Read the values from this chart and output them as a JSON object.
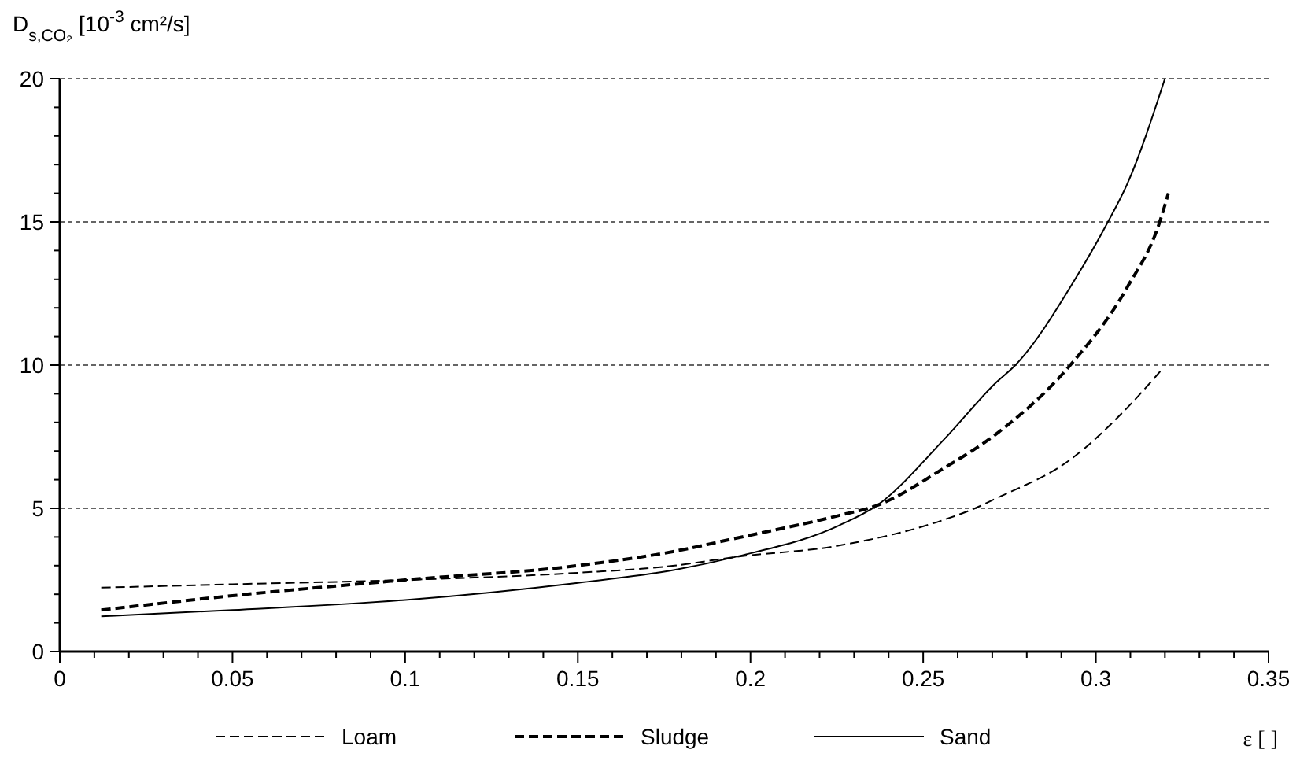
{
  "chart_data": {
    "type": "line",
    "ylabel": "D$_{s,CO₂}$ [10$^{-3}$ cm²/s]",
    "xlabel": "ε [ ]",
    "xlim": [
      0,
      0.35
    ],
    "ylim": [
      0,
      20
    ],
    "xticks": [
      0,
      {
        "value": 0.01,
        "label": null
      },
      {
        "value": 0.02,
        "label": null
      },
      {
        "value": 0.03,
        "label": null
      },
      {
        "value": 0.04,
        "label": null
      },
      0.05,
      {
        "value": 0.06,
        "label": null
      },
      {
        "value": 0.07,
        "label": null
      },
      {
        "value": 0.08,
        "label": null
      },
      {
        "value": 0.09,
        "label": null
      },
      0.1,
      {
        "value": 0.11,
        "label": null
      },
      {
        "value": 0.12,
        "label": null
      },
      {
        "value": 0.13,
        "label": null
      },
      {
        "value": 0.14,
        "label": null
      },
      0.15,
      {
        "value": 0.16,
        "label": null
      },
      {
        "value": 0.17,
        "label": null
      },
      {
        "value": 0.18,
        "label": null
      },
      {
        "value": 0.19,
        "label": null
      },
      0.2,
      {
        "value": 0.21,
        "label": null
      },
      {
        "value": 0.22,
        "label": null
      },
      {
        "value": 0.23,
        "label": null
      },
      {
        "value": 0.24,
        "label": null
      },
      0.25,
      {
        "value": 0.26,
        "label": null
      },
      {
        "value": 0.27,
        "label": null
      },
      {
        "value": 0.28,
        "label": null
      },
      {
        "value": 0.29,
        "label": null
      },
      0.3,
      {
        "value": 0.31,
        "label": null
      },
      {
        "value": 0.32,
        "label": null
      },
      {
        "value": 0.33,
        "label": null
      },
      {
        "value": 0.34,
        "label": null
      },
      0.35
    ],
    "yticks": [
      0,
      {
        "value": 1,
        "label": null
      },
      {
        "value": 2,
        "label": null
      },
      {
        "value": 3,
        "label": null
      },
      {
        "value": 4,
        "label": null
      },
      5,
      {
        "value": 6,
        "label": null
      },
      {
        "value": 7,
        "label": null
      },
      {
        "value": 8,
        "label": null
      },
      {
        "value": 9,
        "label": null
      },
      10,
      {
        "value": 11,
        "label": null
      },
      {
        "value": 12,
        "label": null
      },
      {
        "value": 13,
        "label": null
      },
      {
        "value": 14,
        "label": null
      },
      15,
      {
        "value": 16,
        "label": null
      },
      {
        "value": 17,
        "label": null
      },
      {
        "value": 18,
        "label": null
      },
      {
        "value": 19,
        "label": null
      },
      20
    ],
    "grid": "y",
    "legend": "bottom",
    "series": [
      {
        "name": "Loam",
        "color": "#000000",
        "line_style": "dashed",
        "x": [
          0.012,
          0.05,
          0.1,
          0.15,
          0.178,
          0.1955,
          0.2256,
          0.256,
          0.265,
          0.2712,
          0.2926,
          0.309,
          0.3195
        ],
        "values": [
          2.23,
          2.35,
          2.5,
          2.75,
          3.0,
          3.3,
          3.7,
          4.6,
          5.0,
          5.35,
          6.7,
          8.5,
          9.9
        ]
      },
      {
        "name": "Sludge",
        "color": "#000000",
        "line_style": "dashed",
        "x": [
          0.012,
          0.05,
          0.1,
          0.15,
          0.178,
          0.1955,
          0.2256,
          0.2366,
          0.256,
          0.2712,
          0.2926,
          0.309,
          0.3185,
          0.321
        ],
        "values": [
          1.45,
          1.95,
          2.5,
          3.0,
          3.5,
          3.95,
          4.75,
          5.1,
          6.4,
          7.6,
          10.0,
          12.7,
          15.0,
          16.0
        ]
      },
      {
        "name": "Sand",
        "color": "#000000",
        "line_style": "solid",
        "x": [
          0.012,
          0.05,
          0.1,
          0.15,
          0.178,
          0.1955,
          0.2256,
          0.2366,
          0.256,
          0.2712,
          0.2767,
          0.294,
          0.3035,
          0.309,
          0.32
        ],
        "values": [
          1.23,
          1.45,
          1.8,
          2.4,
          2.85,
          3.3,
          4.4,
          5.1,
          7.4,
          9.4,
          10.0,
          13.0,
          15.0,
          16.3,
          20.0
        ]
      }
    ]
  }
}
